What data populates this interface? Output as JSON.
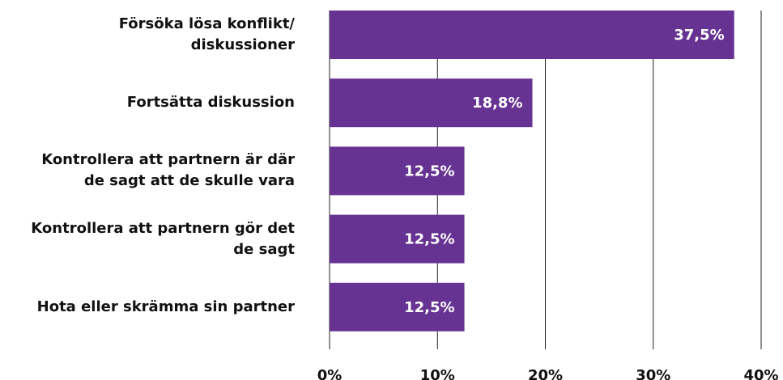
{
  "chart_data": {
    "type": "barh",
    "categories": [
      "Försöka lösa konflikt/\ndiskussioner",
      "Fortsätta diskussion",
      "Kontrollera att partnern är där\nde sagt att de skulle vara",
      "Kontrollera att partnern gör det\nde sagt",
      "Hota eller skrämma sin partner"
    ],
    "values": [
      37.5,
      18.8,
      12.5,
      12.5,
      12.5
    ],
    "value_labels": [
      "37,5%",
      "18,8%",
      "12,5%",
      "12,5%",
      "12,5%"
    ],
    "color": "#673393",
    "xlim": [
      0,
      40
    ],
    "xticks": [
      {
        "value": 0,
        "label": "0%"
      },
      {
        "value": 10,
        "label": "10%"
      },
      {
        "value": 20,
        "label": "20%"
      },
      {
        "value": 30,
        "label": "30%"
      },
      {
        "value": 40,
        "label": "40%"
      }
    ],
    "grid": true
  }
}
